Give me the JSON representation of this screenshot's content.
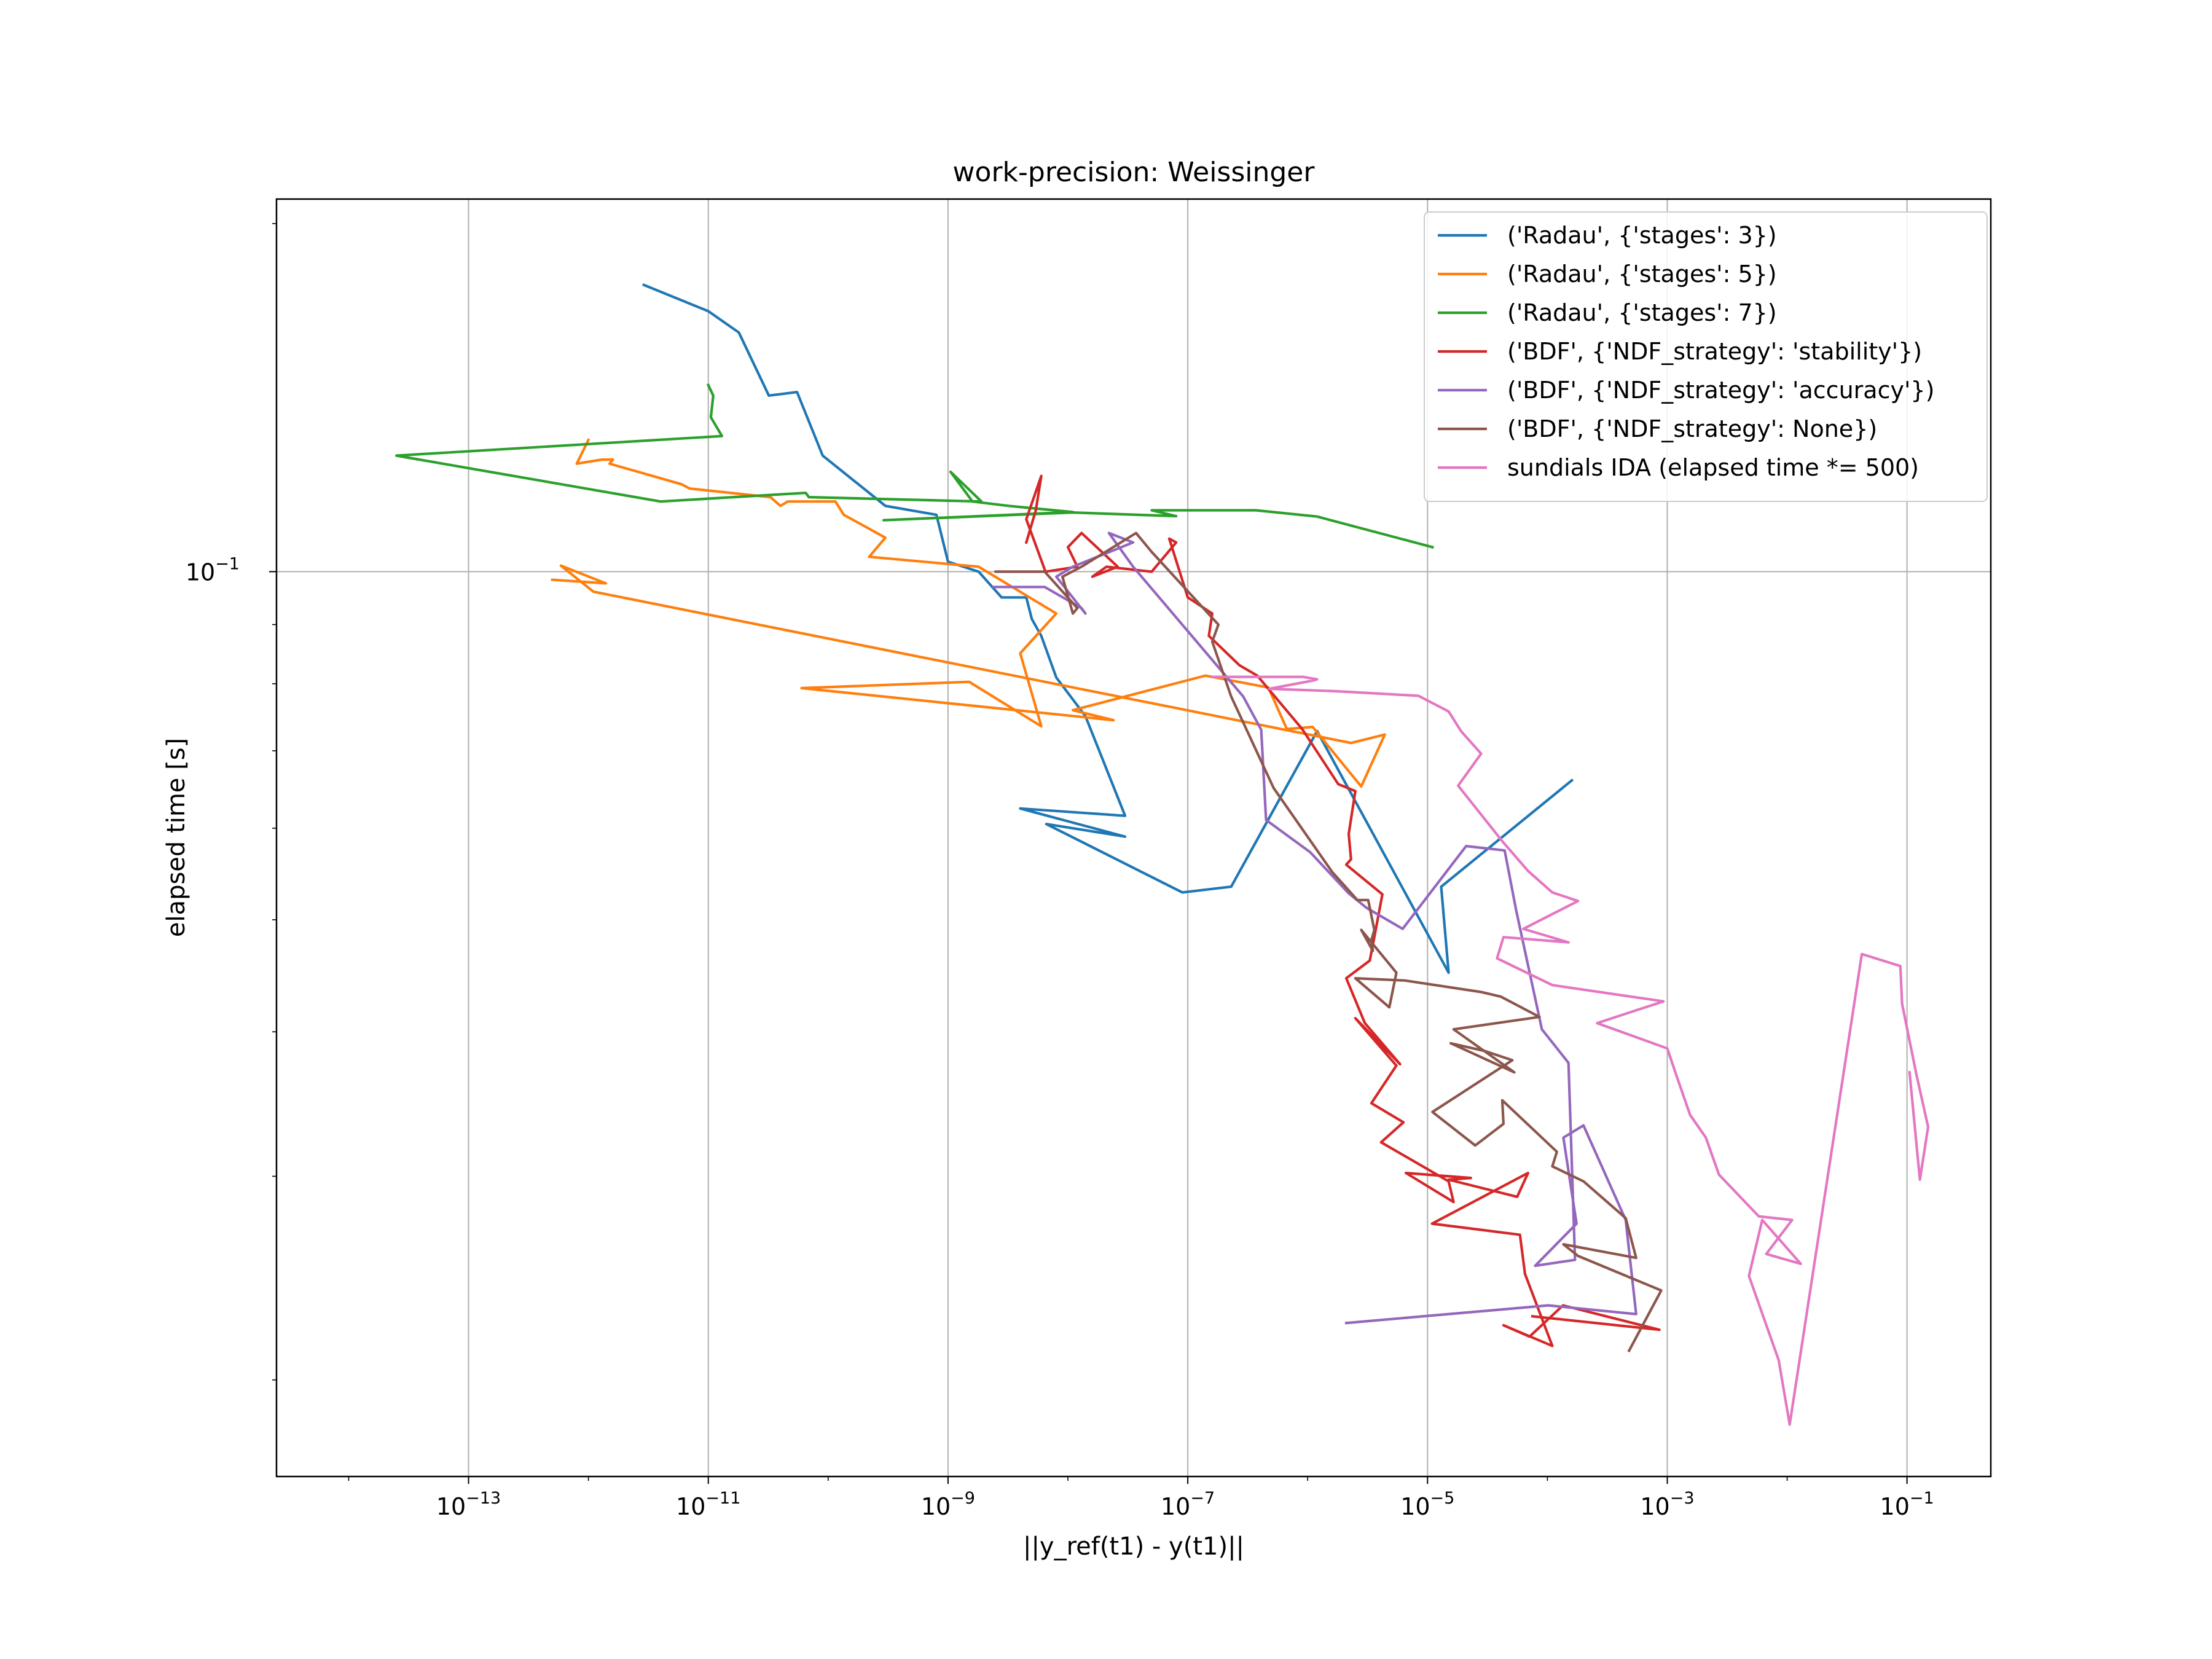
{
  "chart_data": {
    "type": "line",
    "title": "work-precision: Weissinger",
    "xlabel": "||y_ref(t1) - y(t1)||",
    "ylabel": "elapsed time [s]",
    "xscale": "log",
    "yscale": "log",
    "xlim": [
      2.5e-15,
      0.5
    ],
    "ylim": [
      0.0165,
      0.21
    ],
    "xticks": [
      {
        "value": 1e-13,
        "base": "10",
        "exp": "−13"
      },
      {
        "value": 1e-11,
        "base": "10",
        "exp": "−11"
      },
      {
        "value": 1e-09,
        "base": "10",
        "exp": "−9"
      },
      {
        "value": 1e-07,
        "base": "10",
        "exp": "−7"
      },
      {
        "value": 1e-05,
        "base": "10",
        "exp": "−5"
      },
      {
        "value": 0.001,
        "base": "10",
        "exp": "−3"
      },
      {
        "value": 0.1,
        "base": "10",
        "exp": "−1"
      }
    ],
    "yticks": [
      {
        "value": 0.1,
        "base": "10",
        "exp": "−1"
      }
    ],
    "grid": true,
    "legend_position": "top-right",
    "series": [
      {
        "name": "('Radau', {'stages': 3})",
        "color": "#1f77b4",
        "x": [
          2.9e-12,
          1e-11,
          1.8e-11,
          3.2e-11,
          5.5e-11,
          9e-11,
          3e-10,
          8e-10,
          1e-09,
          1.8e-09,
          2.8e-09,
          4.5e-09,
          5e-09,
          6e-09,
          8e-09,
          1.4e-08,
          3e-08,
          4e-09,
          3e-08,
          6.6e-09,
          9e-08,
          2.3e-07,
          1.2e-06,
          1.5e-05,
          1.3e-05,
          0.00016
        ],
        "y": [
          0.177,
          0.168,
          0.161,
          0.142,
          0.143,
          0.126,
          0.114,
          0.112,
          0.102,
          0.1,
          0.095,
          0.095,
          0.091,
          0.088,
          0.081,
          0.075,
          0.0615,
          0.0624,
          0.059,
          0.0605,
          0.0528,
          0.0534,
          0.0728,
          0.045,
          0.0534,
          0.066
        ]
      },
      {
        "name": "('Radau', {'stages': 5})",
        "color": "#ff7f0e",
        "x": [
          1e-12,
          8e-13,
          1.3e-12,
          1.6e-12,
          1.5e-12,
          6e-12,
          7e-12,
          3.3e-11,
          4e-11,
          4.6e-11,
          1.15e-10,
          1.35e-10,
          3e-10,
          2.2e-10,
          1.8e-09,
          8e-09,
          4e-09,
          6e-09,
          1.5e-09,
          6e-11,
          2.4e-08,
          1.1e-08,
          1.4e-07,
          4.7e-07,
          6.7e-07,
          1.1e-06,
          2.8e-06,
          4.4e-06,
          2.3e-06,
          1.1e-12,
          5.9e-13,
          1.4e-12,
          5e-13
        ],
        "y": [
          0.13,
          0.124,
          0.125,
          0.125,
          0.124,
          0.119,
          0.118,
          0.116,
          0.114,
          0.115,
          0.115,
          0.112,
          0.107,
          0.103,
          0.101,
          0.092,
          0.085,
          0.0735,
          0.0803,
          0.0793,
          0.0744,
          0.0759,
          0.0813,
          0.0794,
          0.0731,
          0.0734,
          0.0652,
          0.0723,
          0.0711,
          0.0961,
          0.1012,
          0.0977,
          0.0984
        ]
      },
      {
        "name": "('Radau', {'stages': 7})",
        "color": "#2ca02c",
        "x": [
          1e-11,
          1.1e-11,
          1.05e-11,
          1.3e-11,
          2.5e-14,
          4e-12,
          6.5e-11,
          6.9e-11,
          1.9e-09,
          1.05e-09,
          1.6e-09,
          3.2e-09,
          1.1e-08,
          2.9e-10,
          1.1e-08,
          8e-08,
          5e-08,
          3.7e-07,
          1.2e-06,
          1.1e-05
        ],
        "y": [
          0.145,
          0.142,
          0.136,
          0.131,
          0.126,
          0.115,
          0.117,
          0.116,
          0.115,
          0.122,
          0.115,
          0.114,
          0.1126,
          0.1108,
          0.1125,
          0.1117,
          0.113,
          0.113,
          0.1116,
          0.105
        ]
      },
      {
        "name": "('BDF', {'NDF_strategy': 'stability'})",
        "color": "#d62728",
        "x": [
          4.5e-09,
          5.4e-09,
          6e-09,
          4.5e-09,
          6.5e-09,
          1.2e-08,
          1e-08,
          1.3e-08,
          2.6e-08,
          1.6e-08,
          2.1e-08,
          5e-08,
          8e-08,
          7e-08,
          1e-07,
          1.6e-07,
          1.5e-07,
          2.7e-07,
          3.8e-07,
          9e-07,
          1.8e-06,
          2.5e-06,
          2.2e-06,
          2.3e-06,
          2.1e-06,
          4.2e-06,
          3.6e-06,
          3.3e-06,
          2.1e-06,
          3e-06,
          5.9e-06,
          2.5e-06,
          5.5e-06,
          3.4e-06,
          6.3e-06,
          4.1e-06,
          1.5e-05,
          1.65e-05,
          6.6e-06,
          2.3e-05,
          1.5e-05,
          5.6e-05,
          6.9e-05,
          1.09e-05,
          5.9e-05,
          6.5e-05,
          0.00011,
          4.3e-05,
          7.1e-05,
          0.000135,
          0.00086,
          7.5e-05
        ],
        "y": [
          0.106,
          0.113,
          0.121,
          0.111,
          0.1,
          0.101,
          0.105,
          0.108,
          0.101,
          0.099,
          0.101,
          0.1,
          0.106,
          0.1068,
          0.095,
          0.092,
          0.088,
          0.083,
          0.0813,
          0.0731,
          0.0655,
          0.0646,
          0.0593,
          0.0564,
          0.0558,
          0.0526,
          0.0483,
          0.0461,
          0.0445,
          0.0407,
          0.0375,
          0.0411,
          0.0374,
          0.0347,
          0.0334,
          0.0321,
          0.0297,
          0.0285,
          0.0302,
          0.0299,
          0.0298,
          0.0288,
          0.0302,
          0.0273,
          0.0267,
          0.0247,
          0.0214,
          0.0223,
          0.0218,
          0.0232,
          0.0221,
          0.0227
        ]
      },
      {
        "name": "('BDF', {'NDF_strategy': 'accuracy'})",
        "color": "#9467bd",
        "x": [
          2.4e-09,
          6.4e-09,
          1.3e-08,
          1.4e-08,
          8e-09,
          1.1e-08,
          3.5e-08,
          2.2e-08,
          3.5e-08,
          2.9e-07,
          4.1e-07,
          4.5e-07,
          1.05e-06,
          2.2e-06,
          3.1e-06,
          6.2e-06,
          2.1e-05,
          4.4e-05,
          5.5e-05,
          9e-05,
          0.00015,
          0.00017,
          7.9e-05,
          0.000175,
          0.000136,
          0.0002,
          0.00045,
          0.00055,
          0.000102,
          2.1e-06
        ],
        "y": [
          0.097,
          0.097,
          0.093,
          0.092,
          0.099,
          0.101,
          0.106,
          0.108,
          0.101,
          0.078,
          0.073,
          0.061,
          0.0572,
          0.0527,
          0.0512,
          0.0491,
          0.0579,
          0.0574,
          0.0509,
          0.0402,
          0.0376,
          0.0254,
          0.0251,
          0.0273,
          0.0324,
          0.0332,
          0.0275,
          0.0228,
          0.0232,
          0.0224
        ]
      },
      {
        "name": "('BDF', {'NDF_strategy': None})",
        "color": "#8c564b",
        "x": [
          2.5e-09,
          6.4e-09,
          1.2e-08,
          1.1e-08,
          9e-09,
          1.3e-08,
          3.7e-08,
          5e-08,
          1.8e-07,
          1.6e-07,
          2.3e-07,
          5.2e-07,
          1.6e-06,
          2.6e-06,
          3.2e-06,
          3.6e-06,
          3.4e-06,
          3.5e-06,
          2.8e-06,
          5.5e-06,
          4.8e-06,
          2.5e-06,
          6.5e-06,
          2.8e-05,
          4.1e-05,
          8.6e-05,
          1.65e-05,
          5.3e-05,
          1.56e-05,
          3e-05,
          5.1e-05,
          1.1e-05,
          2.5e-05,
          4.3e-05,
          4.2e-05,
          0.00012,
          0.00011,
          0.0002,
          0.00045,
          0.00055,
          0.000136,
          0.00018,
          0.00089,
          0.00048
        ],
        "y": [
          0.1,
          0.1,
          0.093,
          0.092,
          0.099,
          0.101,
          0.108,
          0.104,
          0.09,
          0.087,
          0.078,
          0.065,
          0.055,
          0.052,
          0.052,
          0.049,
          0.048,
          0.047,
          0.049,
          0.045,
          0.042,
          0.0445,
          0.0443,
          0.0433,
          0.0429,
          0.0412,
          0.0402,
          0.0369,
          0.0391,
          0.0385,
          0.0378,
          0.0341,
          0.0319,
          0.0333,
          0.0349,
          0.0315,
          0.0306,
          0.0297,
          0.0276,
          0.0255,
          0.0262,
          0.0256,
          0.0239,
          0.0212
        ]
      },
      {
        "name": "sundials IDA (elapsed time *= 500)",
        "color": "#e377c2",
        "x": [
          1.6e-07,
          9.1e-07,
          1.2e-06,
          1.1e-06,
          4.8e-07,
          1.8e-06,
          8.4e-06,
          1.5e-05,
          1.9e-05,
          2.8e-05,
          1.8e-05,
          4.3e-05,
          6.9e-05,
          0.00011,
          0.00018,
          6.3e-05,
          0.00015,
          4.3e-05,
          3.8e-05,
          0.00011,
          0.00093,
          0.00026,
          0.001,
          0.0012,
          0.00155,
          0.0021,
          0.0027,
          0.0058,
          0.011,
          0.0067,
          0.013,
          0.0062,
          0.0048,
          0.0085,
          0.0105,
          0.042,
          0.088,
          0.091,
          0.12,
          0.15,
          0.128,
          0.105
        ],
        "y": [
          0.0811,
          0.0811,
          0.0807,
          0.0805,
          0.0792,
          0.0788,
          0.0781,
          0.0757,
          0.0728,
          0.0696,
          0.0653,
          0.0583,
          0.0551,
          0.0528,
          0.0519,
          0.0491,
          0.0478,
          0.0483,
          0.0463,
          0.0439,
          0.0425,
          0.0407,
          0.0387,
          0.0366,
          0.0339,
          0.0324,
          0.0301,
          0.0277,
          0.0275,
          0.0257,
          0.0252,
          0.0275,
          0.0246,
          0.0208,
          0.0183,
          0.0467,
          0.0456,
          0.0423,
          0.0367,
          0.0331,
          0.0298,
          0.0369
        ]
      }
    ]
  }
}
